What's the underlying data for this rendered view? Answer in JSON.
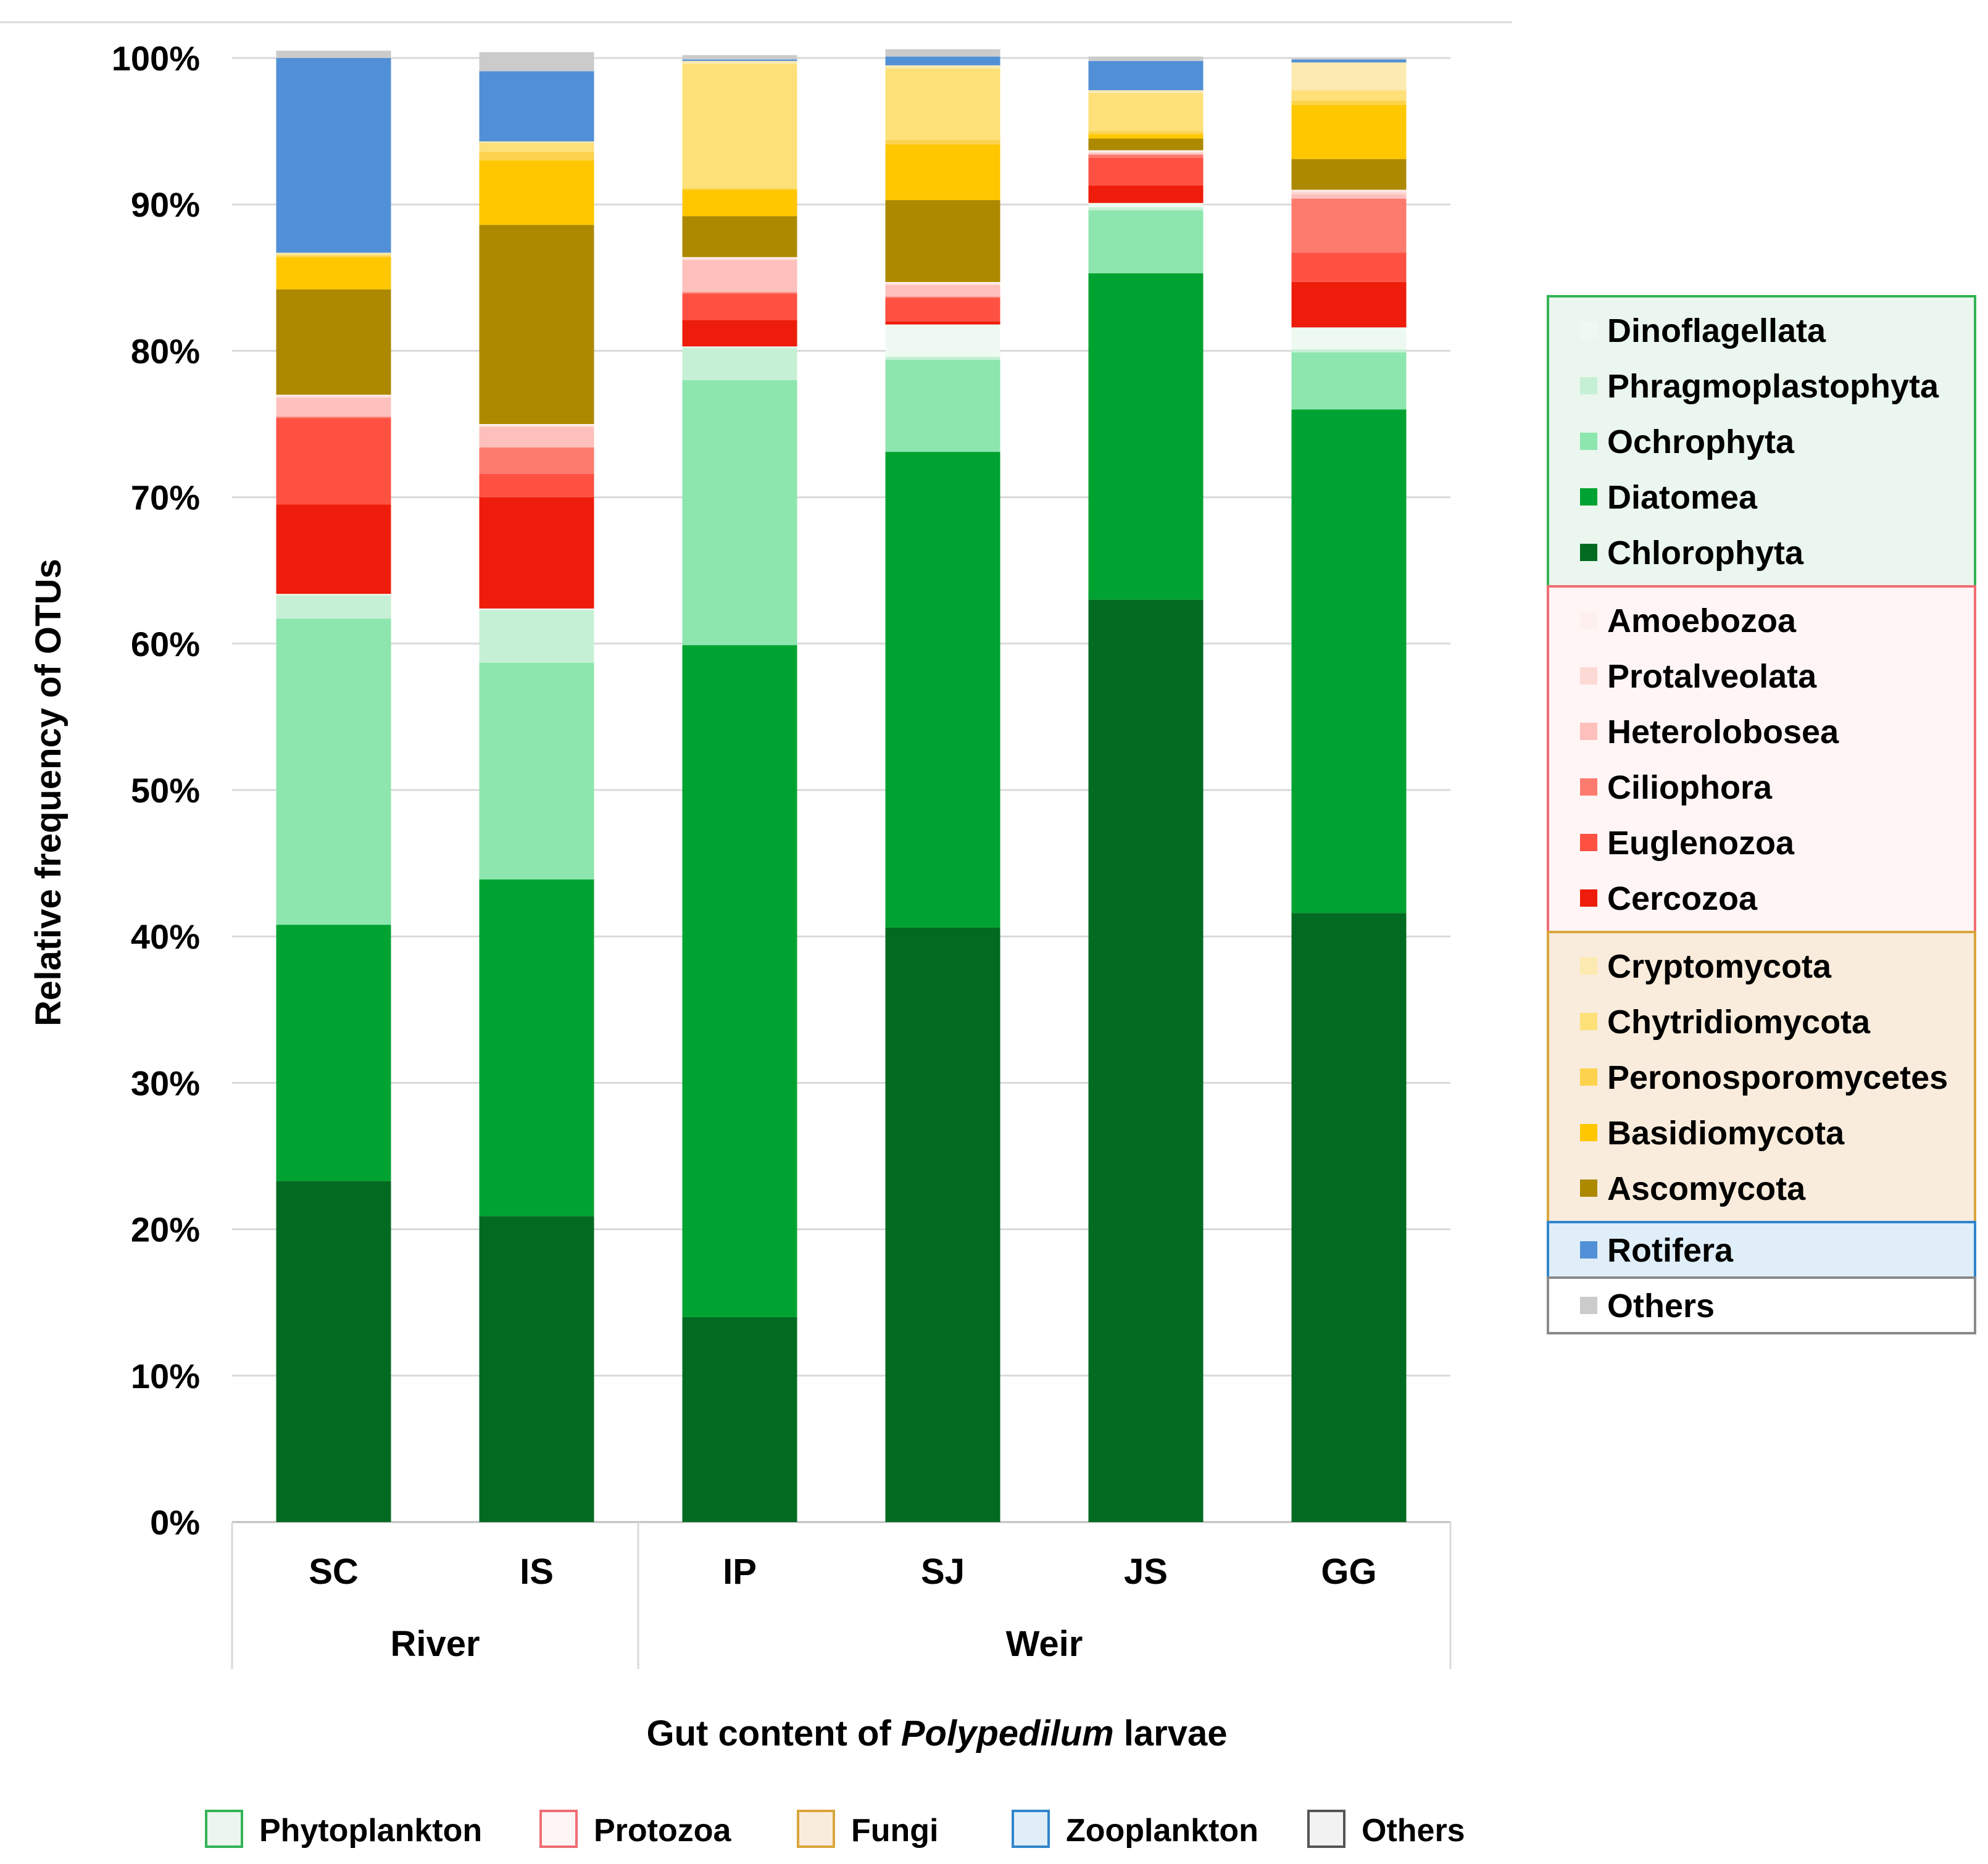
{
  "chart_data": {
    "type": "bar",
    "stacked": true,
    "ylabel": "Relative frequency of OTUs",
    "xlabel_prefix": "Gut content of ",
    "xlabel_italic": "Polypedilum",
    "xlabel_suffix": " larvae",
    "ylim": [
      0,
      100
    ],
    "y_ticks": [
      "0%",
      "10%",
      "20%",
      "30%",
      "40%",
      "50%",
      "60%",
      "70%",
      "80%",
      "90%",
      "100%"
    ],
    "categories": [
      "SC",
      "IS",
      "IP",
      "SJ",
      "JS",
      "GG"
    ],
    "groups": [
      {
        "label": "River",
        "categories": [
          "SC",
          "IS"
        ]
      },
      {
        "label": "Weir",
        "categories": [
          "IP",
          "SJ",
          "JS",
          "GG"
        ]
      }
    ],
    "series": [
      {
        "name": "Chlorophyta",
        "color": "#006b21",
        "values": [
          23.3,
          20.9,
          14.0,
          40.6,
          63.0,
          41.6
        ]
      },
      {
        "name": "Diatomea",
        "color": "#00a331",
        "values": [
          17.5,
          23.0,
          45.9,
          32.5,
          22.3,
          34.4
        ]
      },
      {
        "name": "Ochrophyta",
        "color": "#8ce6ae",
        "values": [
          20.9,
          14.8,
          18.1,
          6.3,
          4.3,
          3.9
        ]
      },
      {
        "name": "Phragmoplastophyta",
        "color": "#c6f0d5",
        "values": [
          1.6,
          3.6,
          2.2,
          0.2,
          0.2,
          0.2
        ]
      },
      {
        "name": "Dinoflagellata",
        "color": "#eefaf1",
        "values": [
          0.1,
          0.1,
          0.1,
          2.2,
          0.3,
          1.5
        ]
      },
      {
        "name": "Cercozoa",
        "color": "#ee1c0a",
        "values": [
          6.1,
          7.6,
          1.8,
          0.2,
          1.2,
          3.1
        ]
      },
      {
        "name": "Euglenozoa",
        "color": "#fe5142",
        "values": [
          5.9,
          1.6,
          1.8,
          1.6,
          1.9,
          2.0
        ]
      },
      {
        "name": "Ciliophora",
        "color": "#fd7b6e",
        "values": [
          0.1,
          1.8,
          0.1,
          0.1,
          0.2,
          3.7
        ]
      },
      {
        "name": "Heterolobosea",
        "color": "#fec0bc",
        "values": [
          1.3,
          1.4,
          2.2,
          0.8,
          0.1,
          0.3
        ]
      },
      {
        "name": "Protalveolata",
        "color": "#fdd9d5",
        "values": [
          0.1,
          0.1,
          0.1,
          0.1,
          0.1,
          0.2
        ]
      },
      {
        "name": "Amoebozoa",
        "color": "#fff0f0",
        "values": [
          0.1,
          0.1,
          0.1,
          0.1,
          0.1,
          0.1
        ]
      },
      {
        "name": "Ascomycota",
        "color": "#ad8900",
        "values": [
          7.2,
          13.6,
          2.8,
          5.6,
          0.8,
          2.1
        ]
      },
      {
        "name": "Basidiomycota",
        "color": "#ffc700",
        "values": [
          2.2,
          4.4,
          1.8,
          3.8,
          0.3,
          3.7
        ]
      },
      {
        "name": "Peronosporomycetes",
        "color": "#fdd34d",
        "values": [
          0.1,
          0.6,
          0.1,
          0.3,
          0.2,
          0.3
        ]
      },
      {
        "name": "Chytridiomycota",
        "color": "#fee078",
        "values": [
          0.1,
          0.6,
          8.5,
          4.9,
          2.6,
          0.7
        ]
      },
      {
        "name": "Cryptomycota",
        "color": "#fdeab0",
        "values": [
          0.1,
          0.1,
          0.2,
          0.2,
          0.2,
          1.9
        ]
      },
      {
        "name": "Rotifera",
        "color": "#5190d6",
        "values": [
          13.3,
          4.8,
          0.1,
          0.6,
          2.0,
          0.2
        ]
      },
      {
        "name": "Others",
        "color": "#cbcbcb",
        "values": [
          0.5,
          1.3,
          0.3,
          0.5,
          0.3,
          0.1
        ]
      }
    ],
    "legend_groups": [
      {
        "items": [
          "Dinoflagellata",
          "Phragmoplastophyta",
          "Ochrophyta",
          "Diatomea",
          "Chlorophyta"
        ],
        "border": "#33b356",
        "fill": "#eaf6ee"
      },
      {
        "items": [
          "Amoebozoa",
          "Protalveolata",
          "Heterolobosea",
          "Ciliophora",
          "Euglenozoa",
          "Cercozoa"
        ],
        "border": "#f06c74",
        "fill": "#fff5f5"
      },
      {
        "items": [
          "Cryptomycota",
          "Chytridiomycota",
          "Peronosporomycetes",
          "Basidiomycota",
          "Ascomycota"
        ],
        "border": "#d9a53b",
        "fill": "#f9ecdc"
      },
      {
        "items": [
          "Rotifera"
        ],
        "border": "#3085cc",
        "fill": "#dfeef8"
      },
      {
        "items": [
          "Others"
        ],
        "border": "#8a8a8a",
        "fill": "#ffffff"
      }
    ],
    "bottom_legend": [
      {
        "label": "Phytoplankton",
        "border": "#33b356",
        "fill": "#eaf6ee"
      },
      {
        "label": "Protozoa",
        "border": "#f06c74",
        "fill": "#fff5f5"
      },
      {
        "label": "Fungi",
        "border": "#d9a53b",
        "fill": "#f9ecdc"
      },
      {
        "label": "Zooplankton",
        "border": "#3085cc",
        "fill": "#dfeef8"
      },
      {
        "label": "Others",
        "border": "#555555",
        "fill": "#f2f2f2"
      }
    ]
  }
}
